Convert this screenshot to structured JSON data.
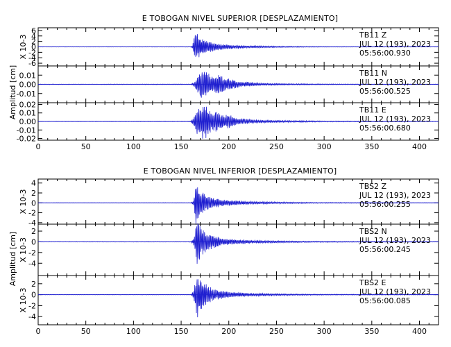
{
  "chart_data": [
    {
      "type": "line",
      "title": "E TOBOGAN NIVEL SUPERIOR [DESPLAZAMIENTO]",
      "ylabel": "Amplitud [cm]",
      "xlim": [
        0,
        420
      ],
      "xticks": [
        0,
        50,
        100,
        150,
        200,
        250,
        300,
        350,
        400
      ],
      "panels": [
        {
          "station": "TB11",
          "component": "Z",
          "date": "JUL 12 (193), 2023",
          "time": "05:56:00.930",
          "scale_label": "X 10-3",
          "ylim": [
            -7,
            7
          ],
          "yticks": [
            6,
            4,
            2,
            0,
            -2,
            -4,
            -6
          ],
          "ytick_labels": [
            "6",
            "4",
            "2",
            "0",
            "-2",
            "-4",
            "-6"
          ],
          "envelope": [
            [
              0,
              0.07
            ],
            [
              160,
              0.09
            ],
            [
              162,
              0.5
            ],
            [
              164,
              4.5
            ],
            [
              165,
              6.3
            ],
            [
              167,
              5.0
            ],
            [
              170,
              3.8
            ],
            [
              173,
              3.0
            ],
            [
              176,
              2.6
            ],
            [
              180,
              2.0
            ],
            [
              185,
              1.6
            ],
            [
              190,
              1.2
            ],
            [
              195,
              1.0
            ],
            [
              200,
              0.8
            ],
            [
              210,
              0.6
            ],
            [
              220,
              0.45
            ],
            [
              240,
              0.33
            ],
            [
              260,
              0.22
            ],
            [
              280,
              0.16
            ],
            [
              300,
              0.12
            ],
            [
              340,
              0.09
            ],
            [
              420,
              0.07
            ]
          ]
        },
        {
          "station": "TB11",
          "component": "N",
          "date": "JUL 12 (193), 2023",
          "time": "05:56:00.525",
          "scale_label": "",
          "ylim": [
            -0.02,
            0.02
          ],
          "yticks": [
            0.01,
            0,
            -0.01
          ],
          "ytick_labels": [
            "0.01",
            "0.00",
            "-0.01"
          ],
          "envelope": [
            [
              0,
              0.0003
            ],
            [
              160,
              0.0004
            ],
            [
              163,
              0.002
            ],
            [
              166,
              0.006
            ],
            [
              168,
              0.011
            ],
            [
              170,
              0.015
            ],
            [
              172,
              0.017
            ],
            [
              175,
              0.015
            ],
            [
              180,
              0.011
            ],
            [
              185,
              0.009
            ],
            [
              190,
              0.011
            ],
            [
              195,
              0.008
            ],
            [
              200,
              0.007
            ],
            [
              205,
              0.0055
            ],
            [
              210,
              0.0035
            ],
            [
              215,
              0.0025
            ],
            [
              220,
              0.0028
            ],
            [
              230,
              0.0015
            ],
            [
              240,
              0.0012
            ],
            [
              260,
              0.0009
            ],
            [
              280,
              0.0007
            ],
            [
              300,
              0.0005
            ],
            [
              420,
              0.0003
            ]
          ]
        },
        {
          "station": "TB11",
          "component": "E",
          "date": "JUL 12 (193), 2023",
          "time": "05:56:00.680",
          "scale_label": "",
          "ylim": [
            -0.022,
            0.022
          ],
          "yticks": [
            0.02,
            0.01,
            0,
            -0.01,
            -0.02
          ],
          "ytick_labels": [
            "0.02",
            "0.01",
            "0.00",
            "-0.01",
            "-0.02"
          ],
          "envelope": [
            [
              0,
              0.0003
            ],
            [
              160,
              0.0004
            ],
            [
              163,
              0.005
            ],
            [
              166,
              0.014
            ],
            [
              169,
              0.018
            ],
            [
              172,
              0.02
            ],
            [
              175,
              0.021
            ],
            [
              178,
              0.017
            ],
            [
              182,
              0.011
            ],
            [
              186,
              0.013
            ],
            [
              190,
              0.01
            ],
            [
              195,
              0.0085
            ],
            [
              200,
              0.0095
            ],
            [
              205,
              0.006
            ],
            [
              210,
              0.004
            ],
            [
              215,
              0.0035
            ],
            [
              220,
              0.003
            ],
            [
              230,
              0.002
            ],
            [
              240,
              0.0016
            ],
            [
              260,
              0.0012
            ],
            [
              280,
              0.001
            ],
            [
              300,
              0.0006
            ],
            [
              420,
              0.0003
            ]
          ]
        }
      ]
    },
    {
      "type": "line",
      "title": "E TOBOGAN NIVEL INFERIOR [DESPLAZAMIENTO]",
      "ylabel": "Amplitud [cm]",
      "xlim": [
        0,
        420
      ],
      "xticks": [
        0,
        50,
        100,
        150,
        200,
        250,
        300,
        350,
        400
      ],
      "panels": [
        {
          "station": "TBS2",
          "component": "Z",
          "date": "JUL 12 (193), 2023",
          "time": "05:56:00.255",
          "scale_label": "X 10-3",
          "ylim": [
            -4.3,
            4.8
          ],
          "yticks": [
            4,
            2,
            0,
            -2,
            -4
          ],
          "ytick_labels": [
            "4",
            "2",
            "0",
            "-2",
            "-4"
          ],
          "envelope": [
            [
              0,
              0.04
            ],
            [
              160,
              0.05
            ],
            [
              163,
              0.4
            ],
            [
              164.5,
              3.5
            ],
            [
              165.5,
              4.8
            ],
            [
              167,
              4.0
            ],
            [
              169,
              3.0
            ],
            [
              172,
              2.5
            ],
            [
              176,
              1.7
            ],
            [
              180,
              1.3
            ],
            [
              186,
              1.0
            ],
            [
              192,
              0.75
            ],
            [
              200,
              0.6
            ],
            [
              210,
              0.45
            ],
            [
              220,
              0.33
            ],
            [
              240,
              0.22
            ],
            [
              260,
              0.16
            ],
            [
              280,
              0.12
            ],
            [
              300,
              0.09
            ],
            [
              420,
              0.05
            ]
          ]
        },
        {
          "station": "TBS2",
          "component": "N",
          "date": "JUL 12 (193), 2023",
          "time": "05:56:00.245",
          "scale_label": "X 10-3",
          "ylim": [
            -6.3,
            3.3
          ],
          "yticks": [
            2,
            0,
            -2,
            -4
          ],
          "ytick_labels": [
            "2",
            "0",
            "-2",
            "-4"
          ],
          "envelope": [
            [
              0,
              0.04
            ],
            [
              160,
              0.05
            ],
            [
              163,
              0.5
            ],
            [
              165,
              2.5
            ],
            [
              167,
              5.5
            ],
            [
              168,
              4.0
            ],
            [
              170,
              3.2
            ],
            [
              173,
              2.5
            ],
            [
              176,
              2.0
            ],
            [
              180,
              1.5
            ],
            [
              186,
              1.1
            ],
            [
              192,
              0.8
            ],
            [
              200,
              0.6
            ],
            [
              210,
              0.45
            ],
            [
              220,
              0.33
            ],
            [
              240,
              0.24
            ],
            [
              260,
              0.17
            ],
            [
              280,
              0.13
            ],
            [
              300,
              0.1
            ],
            [
              420,
              0.05
            ]
          ]
        },
        {
          "station": "TBS2",
          "component": "E",
          "date": "JUL 12 (193), 2023",
          "time": "05:56:00.085",
          "scale_label": "X 10-3",
          "ylim": [
            -5.5,
            3.5
          ],
          "yticks": [
            2,
            0,
            -2,
            -4
          ],
          "ytick_labels": [
            "2",
            "0",
            "-2",
            "-4"
          ],
          "envelope": [
            [
              0,
              0.04
            ],
            [
              160,
              0.05
            ],
            [
              163,
              0.6
            ],
            [
              165,
              2.6
            ],
            [
              167,
              5.0
            ],
            [
              169,
              3.3
            ],
            [
              171,
              2.9
            ],
            [
              174,
              2.4
            ],
            [
              178,
              1.8
            ],
            [
              182,
              1.3
            ],
            [
              188,
              1.0
            ],
            [
              194,
              0.7
            ],
            [
              200,
              0.55
            ],
            [
              210,
              0.42
            ],
            [
              220,
              0.32
            ],
            [
              240,
              0.22
            ],
            [
              260,
              0.16
            ],
            [
              280,
              0.12
            ],
            [
              300,
              0.09
            ],
            [
              420,
              0.05
            ]
          ]
        }
      ]
    }
  ]
}
